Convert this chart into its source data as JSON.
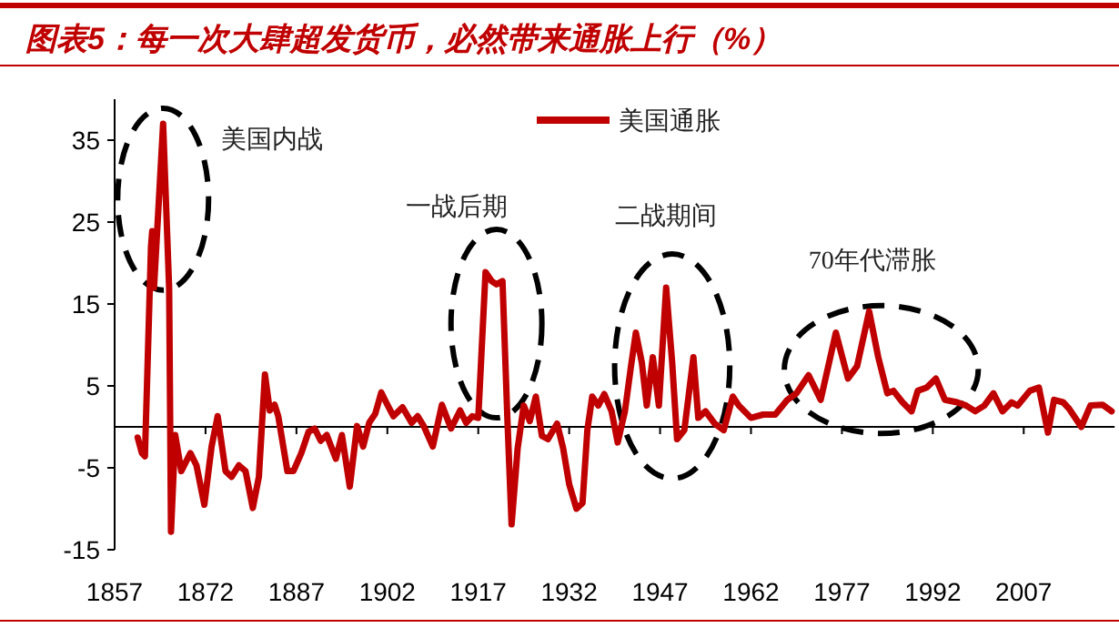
{
  "chart_data": {
    "type": "line",
    "title": "图表5：每一次大肆超发货币，必然带来通胀上行（%）",
    "xlim": [
      1857,
      2022
    ],
    "xticks": [
      1857,
      1872,
      1887,
      1902,
      1917,
      1932,
      1947,
      1962,
      1977,
      1992,
      2007
    ],
    "ylim": [
      -15,
      40
    ],
    "yticks": [
      -15,
      -5,
      5,
      15,
      25,
      35
    ],
    "legend": "top",
    "grid": false,
    "annotations": [
      "美国内战",
      "一战后期",
      "二战期间",
      "70年代滞胀"
    ],
    "series": [
      {
        "name": "美国通胀",
        "color": "#c00000",
        "x": [
          1860.8,
          1861.5,
          1862,
          1863,
          1863.2,
          1863.5,
          1865,
          1866,
          1866.3,
          1867,
          1868,
          1869.5,
          1870.5,
          1871.8,
          1873,
          1874,
          1875.3,
          1876.3,
          1877.5,
          1878.6,
          1879.8,
          1880.8,
          1881.8,
          1882.6,
          1883.4,
          1884,
          1885.5,
          1886.5,
          1887.8,
          1889,
          1890,
          1891,
          1892,
          1893.5,
          1894.5,
          1895.8,
          1897,
          1898,
          1899,
          1900,
          1901,
          1902,
          1903,
          1904.5,
          1906,
          1907,
          1908,
          1909.5,
          1911,
          1912.5,
          1914,
          1915,
          1916,
          1917,
          1918.2,
          1919.2,
          1920,
          1921,
          1921.8,
          1922.5,
          1923.5,
          1924.5,
          1925.5,
          1926.5,
          1927.5,
          1928.5,
          1930,
          1931,
          1932,
          1933.2,
          1934.2,
          1935,
          1935.8,
          1936.8,
          1937.8,
          1939,
          1940,
          1941.2,
          1942.2,
          1943,
          1944,
          1944.8,
          1945.8,
          1946.8,
          1948,
          1949,
          1949.8,
          1951,
          1952.5,
          1953.3,
          1954.5,
          1956,
          1957.5,
          1959,
          1960,
          1962,
          1964,
          1966,
          1968,
          1969.5,
          1971.5,
          1973.5,
          1976,
          1978,
          1979.5,
          1981.5,
          1983,
          1984.5,
          1985.5,
          1987,
          1988.5,
          1989.5,
          1991,
          1992.5,
          1994,
          1996,
          1997.5,
          1999,
          2000.5,
          2002,
          2003.5,
          2005,
          2006,
          2008,
          2009.5,
          2011,
          2012,
          2013.5,
          2014.5,
          2016.5,
          2018,
          2020,
          2021.5
        ],
        "values": [
          -1.3,
          -3.2,
          -3.6,
          22,
          23.9,
          17,
          37,
          16.8,
          -12.8,
          -1,
          -5.4,
          -3.2,
          -4.7,
          -9.5,
          -2.4,
          1.3,
          -5.4,
          -6.1,
          -4.7,
          -5.4,
          -9.9,
          -6.1,
          6.4,
          2,
          2.7,
          1.3,
          -5.4,
          -5.4,
          -3.2,
          -0.6,
          -0.2,
          -1.7,
          -1,
          -3.9,
          -1,
          -7.3,
          0.1,
          -2.4,
          0.5,
          1.6,
          4.2,
          2.7,
          1.3,
          2.4,
          0.5,
          1.3,
          0.1,
          -2.4,
          2.7,
          -0.2,
          2,
          0.5,
          1.3,
          1.1,
          18.9,
          17.8,
          17.4,
          17.8,
          1.1,
          -11.9,
          -2.6,
          2.6,
          0.7,
          3.7,
          -1.1,
          -1.5,
          0.4,
          -2.6,
          -7,
          -10,
          -9.3,
          -0.4,
          3.7,
          2.6,
          4,
          1.9,
          -1.9,
          1.9,
          7.4,
          11.5,
          7.8,
          2.6,
          8.5,
          2.6,
          17,
          7.8,
          -1.5,
          -0.4,
          8.5,
          1.1,
          1.9,
          0.4,
          -0.4,
          3.7,
          2.6,
          1.1,
          1.5,
          1.5,
          3.3,
          4.1,
          6.3,
          3.3,
          11.5,
          5.9,
          7.4,
          14.1,
          8.5,
          4.1,
          4.4,
          3,
          1.9,
          4.4,
          4.8,
          5.9,
          3.3,
          3,
          2.6,
          1.9,
          2.6,
          4.1,
          1.9,
          3,
          2.6,
          4.4,
          4.8,
          -0.7,
          3.3,
          3,
          2.2,
          0,
          2.6,
          2.7,
          1.9
        ]
      }
    ]
  }
}
